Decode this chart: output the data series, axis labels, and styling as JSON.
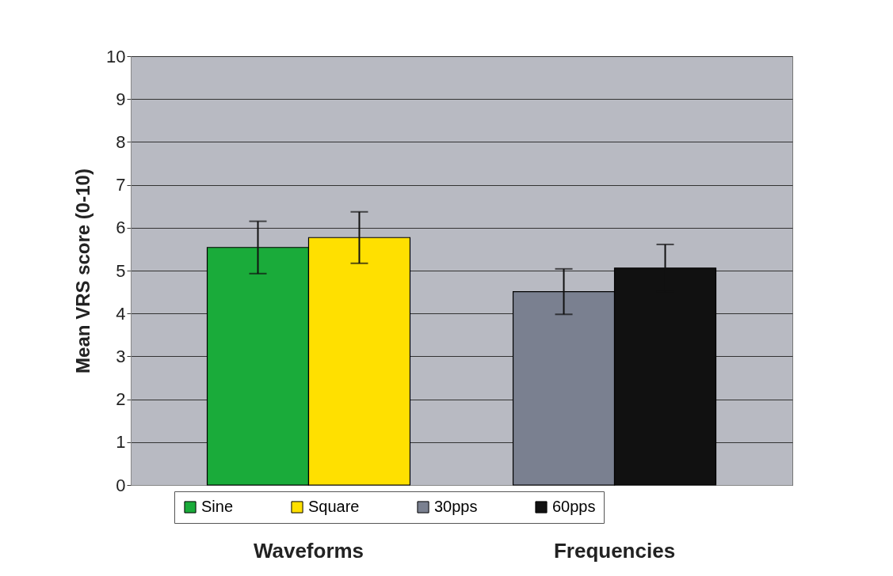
{
  "chart_data": {
    "type": "bar",
    "ylabel": "Mean VRS score (0-10)",
    "categories": [
      "Waveforms",
      "Frequencies"
    ],
    "series": [
      {
        "name": "Sine",
        "color": "#1aab3a",
        "values": [
          5.54,
          null
        ],
        "errors": [
          0.61,
          null
        ]
      },
      {
        "name": "Square",
        "color": "#ffe000",
        "values": [
          5.77,
          null
        ],
        "errors": [
          0.6,
          null
        ]
      },
      {
        "name": "30pps",
        "color": "#7a8090",
        "values": [
          null,
          4.51
        ],
        "errors": [
          null,
          0.53
        ]
      },
      {
        "name": "60pps",
        "color": "#111111",
        "values": [
          null,
          5.06
        ],
        "errors": [
          null,
          0.55
        ]
      }
    ],
    "ylim": [
      0,
      10
    ],
    "yticks": [
      0,
      1,
      2,
      3,
      4,
      5,
      6,
      7,
      8,
      9,
      10
    ],
    "grid": "y",
    "legend": "bottom"
  }
}
